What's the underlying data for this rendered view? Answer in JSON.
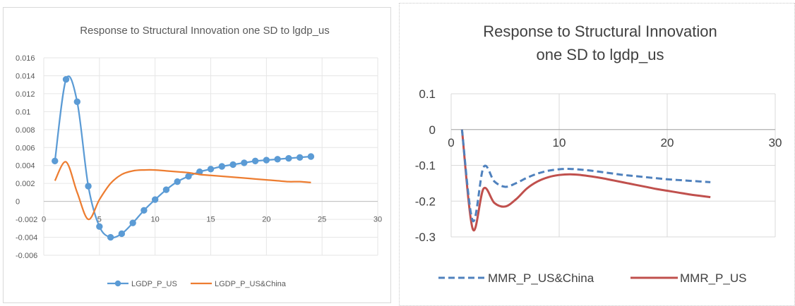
{
  "chart_data": [
    {
      "type": "line",
      "title": "Response to Structural Innovation one SD to lgdp_us",
      "xlabel": "",
      "ylabel": "",
      "xlim": [
        0,
        30
      ],
      "ylim": [
        -0.006,
        0.016
      ],
      "x_ticks": [
        0,
        5,
        10,
        15,
        20,
        25,
        30
      ],
      "y_ticks": [
        -0.006,
        -0.004,
        -0.002,
        0,
        0.002,
        0.004,
        0.006,
        0.008,
        0.01,
        0.012,
        0.014,
        0.016
      ],
      "x_tick_labels": [
        "0",
        "5",
        "10",
        "15",
        "20",
        "25",
        "30"
      ],
      "y_tick_labels": [
        "-0.006",
        "-0.004",
        "-0.002",
        "0",
        "0.002",
        "0.004",
        "0.006",
        "0.008",
        "0.01",
        "0.012",
        "0.014",
        "0.016"
      ],
      "grid": true,
      "legend_position": "bottom",
      "series": [
        {
          "name": "LGDP_P_US",
          "color": "#5b9bd5",
          "markers": true,
          "x": [
            1,
            2,
            3,
            4,
            5,
            6,
            7,
            8,
            9,
            10,
            11,
            12,
            13,
            14,
            15,
            16,
            17,
            18,
            19,
            20,
            21,
            22,
            23,
            24
          ],
          "y": [
            0.0045,
            0.0136,
            0.0111,
            0.0017,
            -0.0028,
            -0.004,
            -0.0036,
            -0.0024,
            -0.001,
            0.0002,
            0.0013,
            0.0022,
            0.0028,
            0.0033,
            0.0036,
            0.0039,
            0.0041,
            0.0043,
            0.0045,
            0.0046,
            0.0047,
            0.0048,
            0.0049,
            0.005
          ]
        },
        {
          "name": "LGDP_P_US&China",
          "color": "#ed7d31",
          "markers": false,
          "x": [
            1,
            2,
            3,
            4,
            5,
            6,
            7,
            8,
            9,
            10,
            11,
            12,
            13,
            14,
            15,
            16,
            17,
            18,
            19,
            20,
            21,
            22,
            23,
            24
          ],
          "y": [
            0.0023,
            0.0044,
            0.001,
            -0.002,
            0.0002,
            0.002,
            0.003,
            0.0034,
            0.0035,
            0.0035,
            0.0034,
            0.0033,
            0.0032,
            0.003,
            0.0029,
            0.0028,
            0.0027,
            0.0026,
            0.0025,
            0.0024,
            0.0023,
            0.0022,
            0.0022,
            0.0021
          ]
        }
      ]
    },
    {
      "type": "line",
      "title": "Response to Structural Innovation one SD to lgdp_us",
      "title_lines": [
        "Response to Structural Innovation",
        "one SD to lgdp_us"
      ],
      "xlabel": "",
      "ylabel": "",
      "xlim": [
        0,
        30
      ],
      "ylim": [
        -0.3,
        0.1
      ],
      "x_ticks": [
        0,
        10,
        20,
        30
      ],
      "y_ticks": [
        -0.3,
        -0.2,
        -0.1,
        0,
        0.1
      ],
      "x_tick_labels": [
        "0",
        "10",
        "20",
        "30"
      ],
      "y_tick_labels": [
        "-0.3",
        "-0.2",
        "-0.1",
        "0",
        "0.1"
      ],
      "grid": true,
      "legend_position": "bottom",
      "series": [
        {
          "name": "MMR_P_US&China",
          "color": "#4f81bd",
          "dashed": true,
          "x": [
            1,
            2,
            3,
            4,
            5,
            6,
            7,
            8,
            9,
            10,
            11,
            12,
            13,
            14,
            15,
            16,
            17,
            18,
            19,
            20,
            21,
            22,
            23,
            24
          ],
          "y": [
            0.0,
            -0.255,
            -0.105,
            -0.145,
            -0.16,
            -0.15,
            -0.135,
            -0.123,
            -0.115,
            -0.111,
            -0.11,
            -0.112,
            -0.115,
            -0.119,
            -0.123,
            -0.127,
            -0.13,
            -0.133,
            -0.136,
            -0.139,
            -0.141,
            -0.143,
            -0.145,
            -0.147
          ]
        },
        {
          "name": "MMR_P_US",
          "color": "#c0504d",
          "dashed": false,
          "x": [
            1,
            2,
            3,
            4,
            5,
            6,
            7,
            8,
            9,
            10,
            11,
            12,
            13,
            14,
            15,
            16,
            17,
            18,
            19,
            20,
            21,
            22,
            23,
            24
          ],
          "y": [
            0.0,
            -0.278,
            -0.165,
            -0.205,
            -0.215,
            -0.195,
            -0.165,
            -0.145,
            -0.133,
            -0.127,
            -0.125,
            -0.127,
            -0.131,
            -0.136,
            -0.142,
            -0.148,
            -0.154,
            -0.16,
            -0.166,
            -0.171,
            -0.176,
            -0.181,
            -0.185,
            -0.189
          ]
        }
      ]
    }
  ]
}
